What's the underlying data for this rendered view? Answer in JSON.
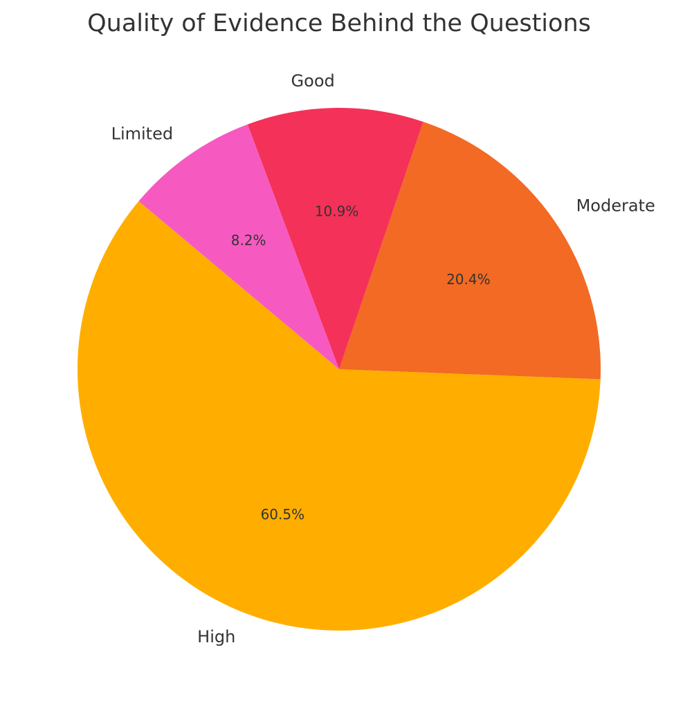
{
  "chart_data": {
    "type": "pie",
    "title": "Quality of Evidence Behind the Questions",
    "categories": [
      "High",
      "Moderate",
      "Good",
      "Limited"
    ],
    "values": [
      60.5,
      20.4,
      10.9,
      8.2
    ],
    "value_labels": [
      "60.5%",
      "20.4%",
      "10.9%",
      "8.2%"
    ],
    "colors": [
      "#ffae00",
      "#f26a23",
      "#f43158",
      "#f65ac1"
    ],
    "startangle": 140,
    "counterclock": true
  }
}
